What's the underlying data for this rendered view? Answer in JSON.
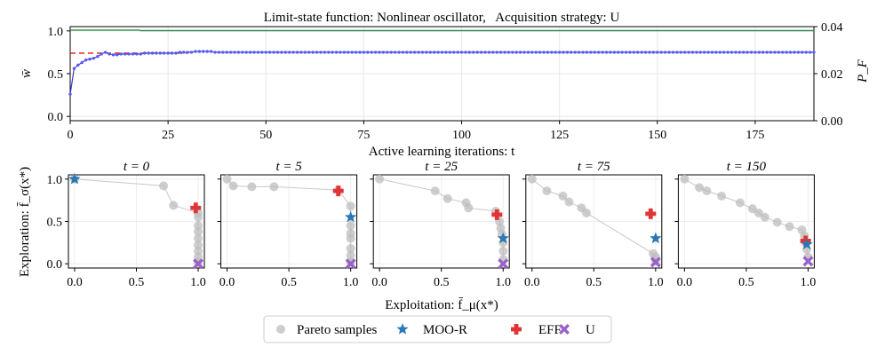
{
  "colors": {
    "w_line": "#3b3bd6",
    "w_marker": "#5b5bf0",
    "pf_line": "#2e8b4a",
    "ref_line": "#e0201b",
    "pareto": "#bdbdbd",
    "moo_r": "#2a78b5",
    "eff": "#e03535",
    "u": "#9a62c9"
  },
  "chart_data": [
    {
      "type": "line",
      "title": "Limit-state function: Nonlinear oscillator,   Acquisition strategy: U",
      "xlabel": "Active learning iterations: t",
      "ylabel_left": "w̄",
      "ylabel_right": "P_F",
      "xlim": [
        0,
        190
      ],
      "ylim_left": [
        -0.05,
        1.05
      ],
      "ylim_right": [
        0,
        0.04
      ],
      "xticks": [
        "0",
        "25",
        "50",
        "75",
        "100",
        "125",
        "150",
        "175"
      ],
      "yticks_left": [
        "0.0",
        "0.5",
        "1.0"
      ],
      "yticks_right": [
        "0.00",
        "0.02",
        "0.04"
      ],
      "grid": true,
      "series": [
        {
          "name": "w_bar",
          "axis": "left",
          "x_start": 0,
          "x_step": 1,
          "values": [
            0.26,
            0.56,
            0.6,
            0.63,
            0.66,
            0.67,
            0.68,
            0.7,
            0.73,
            0.75,
            0.73,
            0.72,
            0.72,
            0.73,
            0.73,
            0.73,
            0.73,
            0.73,
            0.73,
            0.74,
            0.74,
            0.74,
            0.74,
            0.74,
            0.74,
            0.74,
            0.74,
            0.74,
            0.75,
            0.75,
            0.75,
            0.75,
            0.76,
            0.76,
            0.76,
            0.76,
            0.76,
            0.75,
            0.75,
            0.75
          ],
          "steady_value": 0.75
        },
        {
          "name": "P_F",
          "axis": "right",
          "points": [
            [
              0,
              0.0385
            ],
            [
              17.5,
              0.0385
            ],
            [
              18,
              0.0383
            ],
            [
              190,
              0.0383
            ]
          ]
        },
        {
          "name": "reference",
          "axis": "left",
          "style": "dashed",
          "points": [
            [
              0,
              0.74
            ],
            [
              30,
              0.74
            ]
          ]
        }
      ]
    },
    {
      "type": "scatter",
      "shared_xlabel": "Exploitation: f̄_μ(x*)",
      "shared_ylabel": "Exploration: f̄_σ(x*)",
      "xlim": [
        -0.05,
        1.05
      ],
      "ylim": [
        -0.05,
        1.05
      ],
      "xticks": [
        "0.0",
        "0.5",
        "1.0"
      ],
      "yticks": [
        "0.0",
        "0.5",
        "1.0"
      ],
      "panels": [
        {
          "title": "t = 0",
          "pareto": [
            [
              0.0,
              1.0
            ],
            [
              0.72,
              0.92
            ],
            [
              0.8,
              0.69
            ],
            [
              1.0,
              0.6
            ],
            [
              1.0,
              0.55
            ],
            [
              1.0,
              0.45
            ],
            [
              1.0,
              0.38
            ],
            [
              1.0,
              0.3
            ],
            [
              1.0,
              0.22
            ],
            [
              1.0,
              0.15
            ],
            [
              1.0,
              0.08
            ],
            [
              1.0,
              0.02
            ]
          ],
          "moo_r": [
            0.0,
            1.0
          ],
          "eff": [
            0.98,
            0.66
          ],
          "u": [
            1.0,
            0.0
          ]
        },
        {
          "title": "t = 5",
          "pareto": [
            [
              0.0,
              1.0
            ],
            [
              0.05,
              0.92
            ],
            [
              0.2,
              0.91
            ],
            [
              0.38,
              0.91
            ],
            [
              0.9,
              0.87
            ],
            [
              1.0,
              0.68
            ],
            [
              1.0,
              0.45
            ],
            [
              1.0,
              0.36
            ],
            [
              1.0,
              0.3
            ],
            [
              1.0,
              0.18
            ],
            [
              1.0,
              0.1
            ],
            [
              1.0,
              0.02
            ]
          ],
          "moo_r": [
            1.0,
            0.55
          ],
          "eff": [
            0.9,
            0.86
          ],
          "u": [
            1.0,
            0.0
          ]
        },
        {
          "title": "t = 25",
          "pareto": [
            [
              0.0,
              1.0
            ],
            [
              0.45,
              0.86
            ],
            [
              0.55,
              0.77
            ],
            [
              0.7,
              0.72
            ],
            [
              0.72,
              0.66
            ],
            [
              0.94,
              0.62
            ],
            [
              0.97,
              0.5
            ],
            [
              0.98,
              0.42
            ],
            [
              0.99,
              0.35
            ],
            [
              1.0,
              0.25
            ],
            [
              1.0,
              0.15
            ],
            [
              1.0,
              0.05
            ]
          ],
          "moo_r": [
            1.0,
            0.3
          ],
          "eff": [
            0.95,
            0.58
          ],
          "u": [
            1.0,
            0.0
          ]
        },
        {
          "title": "t = 75",
          "pareto": [
            [
              0.0,
              1.0
            ],
            [
              0.12,
              0.86
            ],
            [
              0.25,
              0.8
            ],
            [
              0.3,
              0.73
            ],
            [
              0.4,
              0.66
            ],
            [
              0.44,
              0.6
            ],
            [
              0.98,
              0.12
            ],
            [
              1.0,
              0.08
            ],
            [
              1.0,
              0.03
            ]
          ],
          "moo_r": [
            1.0,
            0.3
          ],
          "eff": [
            0.96,
            0.59
          ],
          "u": [
            1.0,
            0.02
          ]
        },
        {
          "title": "t = 150",
          "pareto": [
            [
              0.0,
              1.0
            ],
            [
              0.12,
              0.9
            ],
            [
              0.18,
              0.86
            ],
            [
              0.3,
              0.8
            ],
            [
              0.45,
              0.72
            ],
            [
              0.55,
              0.65
            ],
            [
              0.6,
              0.6
            ],
            [
              0.65,
              0.55
            ],
            [
              0.75,
              0.49
            ],
            [
              0.85,
              0.44
            ],
            [
              0.95,
              0.4
            ],
            [
              0.97,
              0.33
            ],
            [
              0.98,
              0.25
            ],
            [
              0.99,
              0.17
            ],
            [
              1.0,
              0.08
            ]
          ],
          "moo_r": [
            0.99,
            0.23
          ],
          "eff": [
            0.98,
            0.27
          ],
          "u": [
            1.0,
            0.03
          ]
        }
      ]
    }
  ],
  "legend": [
    {
      "key": "pareto",
      "label": "Pareto samples"
    },
    {
      "key": "moo_r",
      "label": "MOO-R"
    },
    {
      "key": "eff",
      "label": "EFF"
    },
    {
      "key": "u",
      "label": "U"
    }
  ]
}
